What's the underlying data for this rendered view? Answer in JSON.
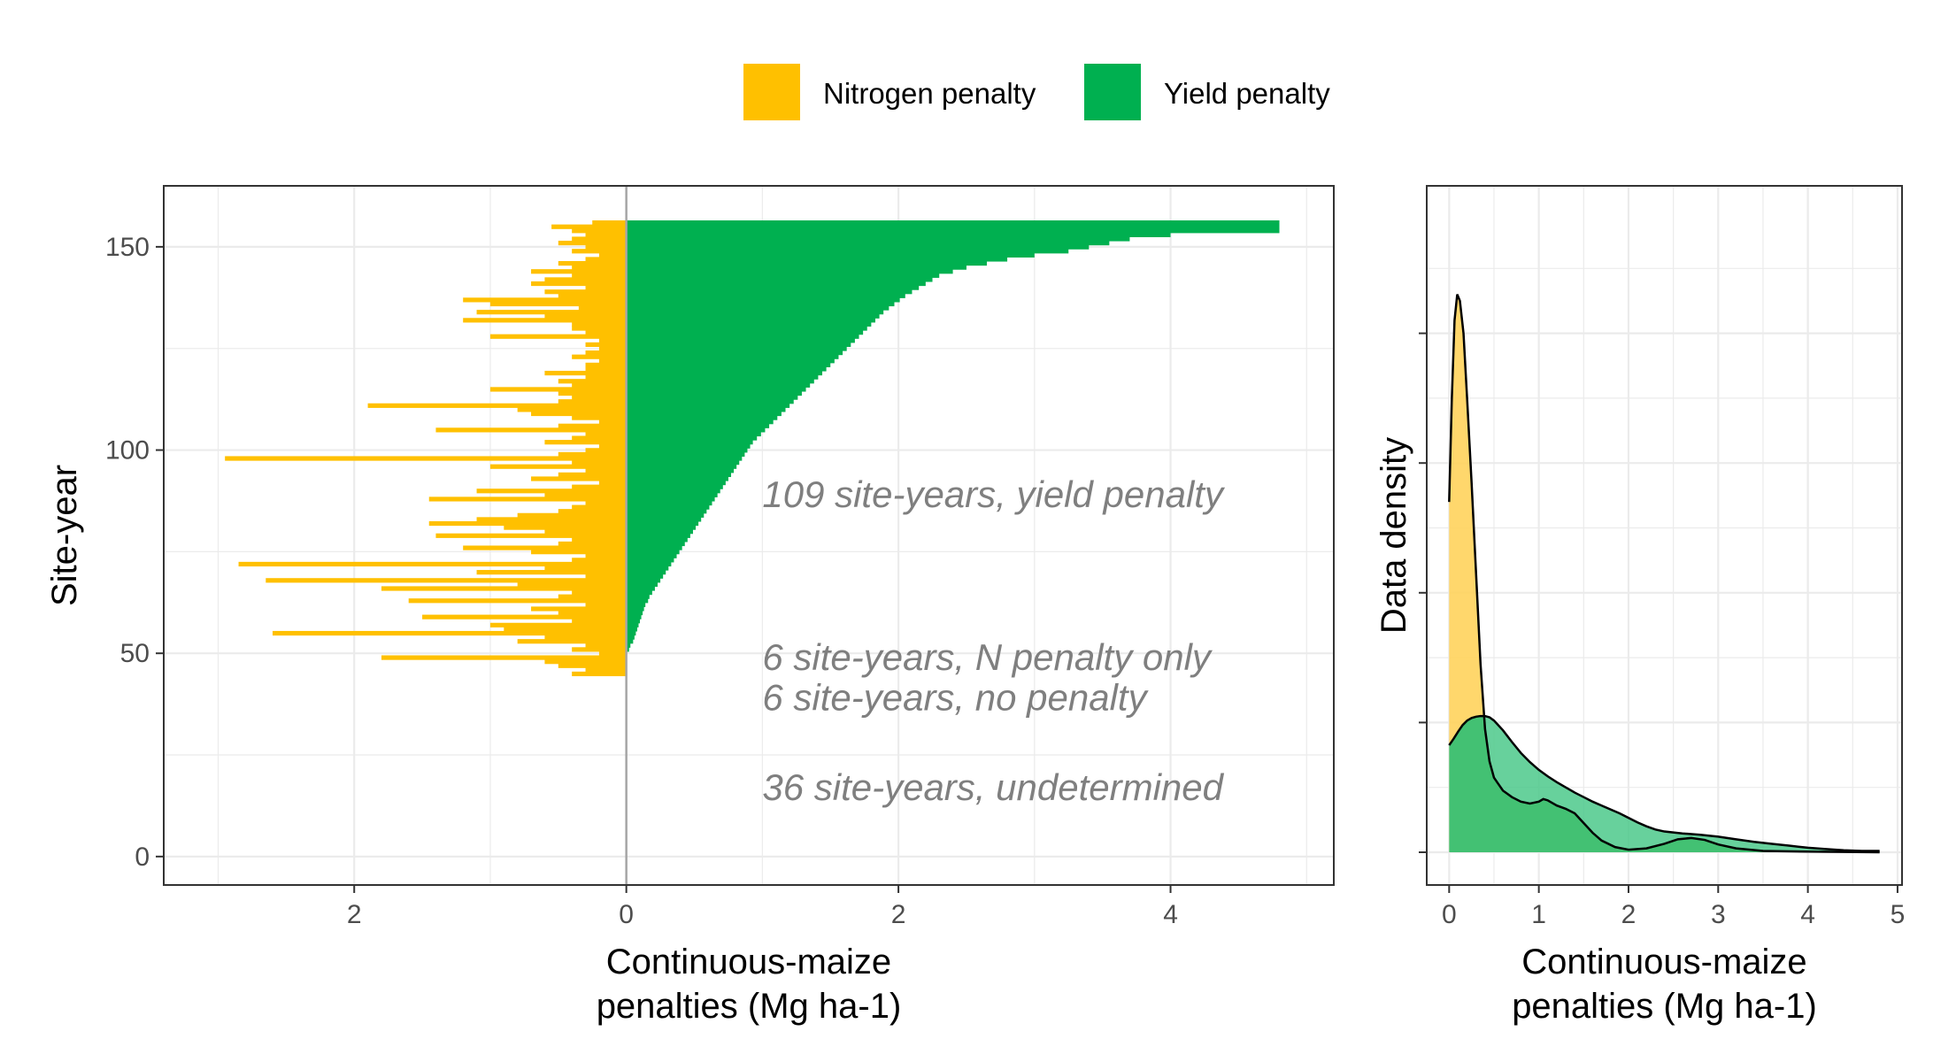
{
  "colors": {
    "nitrogen": "#FFC000",
    "yield": "#00B050",
    "yield_density": "#4CC98B",
    "nitrogen_density": "#FFD35C",
    "grid": "#ebebeb",
    "zero_line": "#a6a6a6",
    "annotation": "#7f7f7f"
  },
  "legend": {
    "items": [
      {
        "label": "Nitrogen penalty",
        "color": "#FFC000"
      },
      {
        "label": "Yield penalty",
        "color": "#00B050"
      }
    ]
  },
  "chart_data": [
    {
      "type": "bar",
      "orientation": "horizontal diverging",
      "xlabel": "Continuous-maize\npenalties (Mg ha-1)",
      "ylabel": "Site-year",
      "x_ticks": [
        {
          "value": -2,
          "label": "2"
        },
        {
          "value": 0,
          "label": "0"
        },
        {
          "value": 2,
          "label": "2"
        },
        {
          "value": 4,
          "label": "4"
        }
      ],
      "y_ticks": [
        0,
        50,
        100,
        150
      ],
      "xlim": [
        -3.4,
        5.2
      ],
      "ylim": [
        -7,
        165
      ],
      "grid": true,
      "annotations": [
        {
          "text": "109 site-years, yield penalty",
          "x": 1.0,
          "y": 89
        },
        {
          "text": "6 site-years, N penalty only",
          "x": 1.0,
          "y": 49
        },
        {
          "text": "6 site-years, no penalty",
          "x": 1.0,
          "y": 39
        },
        {
          "text": "36 site-years, undetermined",
          "x": 1.0,
          "y": 17
        }
      ],
      "series": [
        {
          "name": "Nitrogen penalty",
          "y_start": 45,
          "values": [
            0.4,
            0.3,
            0.5,
            0.6,
            1.8,
            0.2,
            0.4,
            0.3,
            0.8,
            0.6,
            2.6,
            0.9,
            1.0,
            0.4,
            1.5,
            0.5,
            0.7,
            0.3,
            1.6,
            0.5,
            0.4,
            1.8,
            0.8,
            2.65,
            0.3,
            1.1,
            0.6,
            2.85,
            0.4,
            0.3,
            0.7,
            1.2,
            0.5,
            0.4,
            1.4,
            0.6,
            0.9,
            1.45,
            1.1,
            0.8,
            0.5,
            0.4,
            0.3,
            1.45,
            0.6,
            1.1,
            0.4,
            0.2,
            0.7,
            0.5,
            0.3,
            1.0,
            0.4,
            2.95,
            0.5,
            0.3,
            0.2,
            0.6,
            0.4,
            0.3,
            1.4,
            0.5,
            0.2,
            0.4,
            0.7,
            0.8,
            1.9,
            0.5,
            0.4,
            0.5,
            1.0,
            0.4,
            0.5,
            0.3,
            0.6,
            0.3,
            0.3,
            0.2,
            0.4,
            0.3,
            0.2,
            0.3,
            0.2,
            1.0,
            0.3,
            0.4,
            0.4,
            1.2,
            0.6,
            1.1,
            0.35,
            1.0,
            1.2,
            0.5,
            0.6,
            0.3,
            0.7,
            0.6,
            0.4,
            0.7,
            0.4,
            0.5,
            0.3,
            0.2,
            0.4,
            0.3,
            0.5,
            0.4,
            0.3,
            0.4,
            0.55,
            0.25
          ]
        },
        {
          "name": "Yield penalty",
          "y_start": 45,
          "values": [
            0.0,
            0.0,
            0.0,
            0.0,
            0.0,
            0.0,
            0.02,
            0.03,
            0.05,
            0.06,
            0.07,
            0.08,
            0.09,
            0.1,
            0.11,
            0.12,
            0.13,
            0.14,
            0.16,
            0.17,
            0.19,
            0.21,
            0.23,
            0.25,
            0.27,
            0.29,
            0.31,
            0.33,
            0.35,
            0.37,
            0.39,
            0.41,
            0.43,
            0.45,
            0.47,
            0.49,
            0.51,
            0.53,
            0.55,
            0.57,
            0.59,
            0.61,
            0.63,
            0.65,
            0.67,
            0.69,
            0.71,
            0.73,
            0.75,
            0.77,
            0.79,
            0.81,
            0.83,
            0.85,
            0.87,
            0.89,
            0.91,
            0.93,
            0.96,
            0.99,
            1.02,
            1.05,
            1.08,
            1.11,
            1.14,
            1.17,
            1.2,
            1.23,
            1.26,
            1.29,
            1.32,
            1.35,
            1.38,
            1.41,
            1.44,
            1.47,
            1.5,
            1.53,
            1.56,
            1.59,
            1.62,
            1.65,
            1.68,
            1.71,
            1.74,
            1.77,
            1.8,
            1.83,
            1.86,
            1.89,
            1.93,
            1.97,
            2.01,
            2.05,
            2.1,
            2.15,
            2.2,
            2.25,
            2.3,
            2.4,
            2.5,
            2.65,
            2.8,
            3.0,
            3.25,
            3.4,
            3.55,
            3.7,
            4.0,
            4.8,
            4.8,
            4.8
          ]
        }
      ]
    },
    {
      "type": "area",
      "subtype": "density",
      "xlabel": "Continuous-maize\npenalties (Mg ha-1)",
      "ylabel": "Data density",
      "x_ticks": [
        0,
        1,
        2,
        3,
        4,
        5
      ],
      "xlim": [
        -0.25,
        5.05
      ],
      "ylim": [
        0,
        1.0
      ],
      "y_tick_positions": [
        0,
        0.2,
        0.4,
        0.6,
        0.8
      ],
      "y_tick_labels_shown": false,
      "grid": true,
      "series": [
        {
          "name": "Nitrogen penalty",
          "points": [
            [
              0.0,
              0.54
            ],
            [
              0.03,
              0.7
            ],
            [
              0.06,
              0.82
            ],
            [
              0.09,
              0.86
            ],
            [
              0.12,
              0.85
            ],
            [
              0.16,
              0.8
            ],
            [
              0.2,
              0.7
            ],
            [
              0.25,
              0.57
            ],
            [
              0.3,
              0.43
            ],
            [
              0.35,
              0.29
            ],
            [
              0.4,
              0.19
            ],
            [
              0.45,
              0.14
            ],
            [
              0.5,
              0.115
            ],
            [
              0.55,
              0.105
            ],
            [
              0.6,
              0.095
            ],
            [
              0.65,
              0.09
            ],
            [
              0.7,
              0.085
            ],
            [
              0.8,
              0.078
            ],
            [
              0.9,
              0.075
            ],
            [
              1.0,
              0.078
            ],
            [
              1.05,
              0.082
            ],
            [
              1.1,
              0.08
            ],
            [
              1.15,
              0.076
            ],
            [
              1.2,
              0.072
            ],
            [
              1.3,
              0.067
            ],
            [
              1.4,
              0.06
            ],
            [
              1.5,
              0.045
            ],
            [
              1.6,
              0.03
            ],
            [
              1.7,
              0.018
            ],
            [
              1.85,
              0.008
            ],
            [
              2.0,
              0.004
            ],
            [
              2.2,
              0.006
            ],
            [
              2.4,
              0.013
            ],
            [
              2.55,
              0.02
            ],
            [
              2.7,
              0.022
            ],
            [
              2.85,
              0.019
            ],
            [
              3.0,
              0.012
            ],
            [
              3.2,
              0.006
            ],
            [
              3.5,
              0.002
            ],
            [
              4.0,
              0.001
            ],
            [
              4.8,
              0.0
            ]
          ]
        },
        {
          "name": "Yield penalty",
          "points": [
            [
              0.0,
              0.165
            ],
            [
              0.05,
              0.175
            ],
            [
              0.1,
              0.186
            ],
            [
              0.15,
              0.196
            ],
            [
              0.2,
              0.203
            ],
            [
              0.25,
              0.207
            ],
            [
              0.3,
              0.209
            ],
            [
              0.35,
              0.21
            ],
            [
              0.4,
              0.21
            ],
            [
              0.45,
              0.208
            ],
            [
              0.5,
              0.203
            ],
            [
              0.6,
              0.188
            ],
            [
              0.7,
              0.17
            ],
            [
              0.8,
              0.153
            ],
            [
              0.9,
              0.139
            ],
            [
              1.0,
              0.127
            ],
            [
              1.1,
              0.117
            ],
            [
              1.2,
              0.108
            ],
            [
              1.3,
              0.1
            ],
            [
              1.4,
              0.092
            ],
            [
              1.5,
              0.085
            ],
            [
              1.6,
              0.078
            ],
            [
              1.7,
              0.072
            ],
            [
              1.8,
              0.066
            ],
            [
              1.9,
              0.06
            ],
            [
              2.0,
              0.053
            ],
            [
              2.1,
              0.046
            ],
            [
              2.2,
              0.04
            ],
            [
              2.3,
              0.035
            ],
            [
              2.4,
              0.032
            ],
            [
              2.6,
              0.029
            ],
            [
              2.8,
              0.027
            ],
            [
              3.0,
              0.024
            ],
            [
              3.2,
              0.02
            ],
            [
              3.4,
              0.016
            ],
            [
              3.6,
              0.013
            ],
            [
              3.8,
              0.01
            ],
            [
              4.0,
              0.007
            ],
            [
              4.2,
              0.005
            ],
            [
              4.4,
              0.003
            ],
            [
              4.6,
              0.002
            ],
            [
              4.8,
              0.002
            ]
          ]
        }
      ]
    }
  ]
}
